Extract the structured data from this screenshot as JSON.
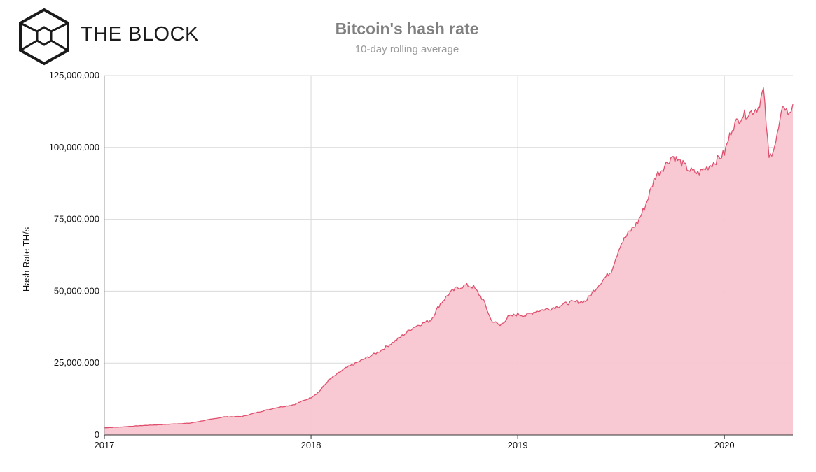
{
  "brand": {
    "name": "THE BLOCK",
    "logo_icon": "the-block-cube-logo-icon"
  },
  "colors": {
    "line": "#e0506e",
    "fill": "#f8c6d0",
    "grid": "#d9d9d9",
    "title": "#808080",
    "subtitle": "#999999"
  },
  "chart_data": {
    "type": "area",
    "title": "Bitcoin's hash rate",
    "subtitle": "10-day rolling average",
    "ylabel": "Hash Rate TH/s",
    "xlabel": "",
    "x_ticks": [
      "2017",
      "2018",
      "2019",
      "2020"
    ],
    "y_ticks": [
      "0",
      "25,000,000",
      "50,000,000",
      "75,000,000",
      "100,000,000",
      "125,000,000"
    ],
    "ylim": [
      0,
      125000000
    ],
    "xlim": [
      "2017-01-01",
      "2020-05-01"
    ],
    "grid": true,
    "legend": "none",
    "series": [
      {
        "x": [
          "2017-01-01",
          "2017-02-01",
          "2017-03-01",
          "2017-04-01",
          "2017-05-01",
          "2017-06-01",
          "2017-07-01",
          "2017-08-01",
          "2017-09-01",
          "2017-10-01",
          "2017-11-01",
          "2017-12-01",
          "2018-01-01",
          "2018-01-15",
          "2018-02-01",
          "2018-03-01",
          "2018-04-01",
          "2018-05-01",
          "2018-06-01",
          "2018-07-01",
          "2018-08-01",
          "2018-08-15",
          "2018-09-01",
          "2018-09-15",
          "2018-10-01",
          "2018-10-15",
          "2018-11-01",
          "2018-11-15",
          "2018-12-01",
          "2018-12-15",
          "2019-01-01",
          "2019-01-15",
          "2019-02-01",
          "2019-03-01",
          "2019-04-01",
          "2019-05-01",
          "2019-05-15",
          "2019-06-01",
          "2019-06-15",
          "2019-07-01",
          "2019-07-15",
          "2019-08-01",
          "2019-08-15",
          "2019-09-01",
          "2019-09-15",
          "2019-10-01",
          "2019-10-15",
          "2019-11-01",
          "2019-11-15",
          "2019-12-01",
          "2019-12-15",
          "2020-01-01",
          "2020-01-15",
          "2020-02-01",
          "2020-02-15",
          "2020-03-01",
          "2020-03-10",
          "2020-03-20",
          "2020-04-01",
          "2020-04-15",
          "2020-04-25",
          "2020-05-01"
        ],
        "values": [
          2500000,
          2800000,
          3200000,
          3500000,
          3800000,
          4100000,
          5200000,
          6300000,
          6400000,
          8000000,
          9500000,
          10500000,
          13000000,
          15000000,
          19000000,
          23000000,
          26000000,
          29000000,
          33000000,
          37500000,
          40000000,
          45000000,
          49000000,
          51000000,
          52000000,
          51500000,
          47000000,
          40000000,
          38000000,
          41000000,
          42000000,
          41500000,
          43000000,
          44000000,
          46000000,
          46500000,
          50000000,
          54000000,
          57000000,
          66000000,
          70000000,
          74000000,
          80000000,
          90000000,
          93000000,
          97000000,
          95000000,
          92000000,
          91000000,
          93000000,
          95000000,
          98000000,
          107000000,
          111000000,
          112000000,
          114000000,
          120000000,
          96000000,
          102000000,
          115000000,
          111000000,
          115000000
        ]
      }
    ]
  }
}
